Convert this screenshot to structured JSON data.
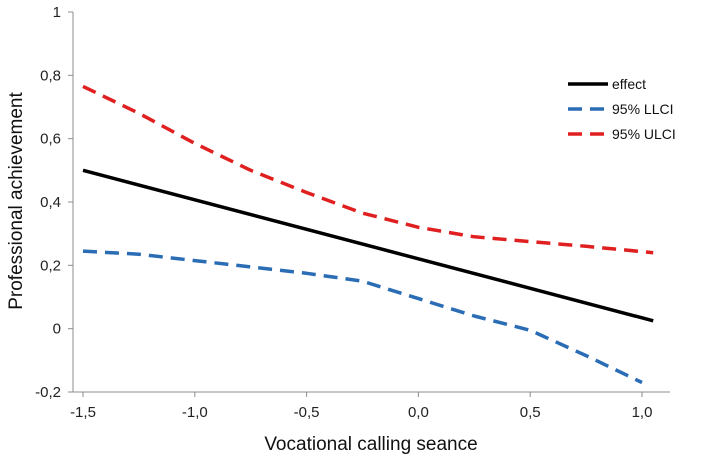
{
  "chart_data": {
    "type": "line",
    "title": "",
    "xlabel": "Vocational calling seance",
    "ylabel": "Professional achievement",
    "xlim": [
      -1.5,
      1.05
    ],
    "ylim": [
      -0.2,
      1.0
    ],
    "x_ticks": [
      -1.5,
      -1.0,
      -0.5,
      0.0,
      0.5,
      1.0
    ],
    "x_tick_labels": [
      "-1,5",
      "-1,0",
      "-0,5",
      "0,0",
      "0,5",
      "1,0"
    ],
    "y_ticks": [
      -0.2,
      0,
      0.2,
      0.4,
      0.6,
      0.8,
      1.0
    ],
    "y_tick_labels": [
      "-0,2",
      "0",
      "0,2",
      "0,4",
      "0,6",
      "0,8",
      "1"
    ],
    "grid": false,
    "legend_position": "right",
    "series": [
      {
        "name": "effect",
        "color": "#000000",
        "dash": "solid",
        "x": [
          -1.5,
          1.05
        ],
        "y": [
          0.5,
          0.025
        ]
      },
      {
        "name": "95% LLCI",
        "color": "#2a6db5",
        "dash": "dashed",
        "x": [
          -1.5,
          -1.25,
          -1.0,
          -0.75,
          -0.5,
          -0.25,
          0.0,
          0.25,
          0.5,
          0.75,
          1.0
        ],
        "y": [
          0.245,
          0.235,
          0.215,
          0.195,
          0.175,
          0.15,
          0.095,
          0.04,
          -0.005,
          -0.085,
          -0.17
        ]
      },
      {
        "name": "95% ULCI",
        "color": "#e02020",
        "dash": "dashed",
        "x": [
          -1.5,
          -1.25,
          -1.0,
          -0.75,
          -0.5,
          -0.25,
          0.0,
          0.25,
          0.5,
          0.75,
          1.05
        ],
        "y": [
          0.765,
          0.68,
          0.585,
          0.5,
          0.43,
          0.365,
          0.32,
          0.29,
          0.275,
          0.26,
          0.24
        ]
      }
    ]
  }
}
